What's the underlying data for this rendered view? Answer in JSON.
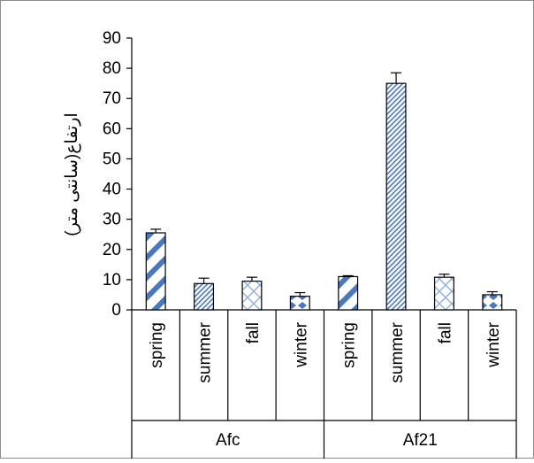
{
  "chart_data": {
    "type": "bar",
    "ylabel": "ارتفاع(سانتی متر)",
    "ylim": [
      0,
      90
    ],
    "yticks": [
      0,
      10,
      20,
      30,
      40,
      50,
      60,
      70,
      80,
      90
    ],
    "groups": [
      {
        "label": "Afc",
        "categories": [
          "spring",
          "summer",
          "fall",
          "winter"
        ],
        "values": [
          25.5,
          8.7,
          9.5,
          4.5
        ],
        "errors": [
          1.2,
          1.8,
          1.3,
          1.2
        ]
      },
      {
        "label": "Af21",
        "categories": [
          "spring",
          "summer",
          "fall",
          "winter"
        ],
        "values": [
          11,
          75,
          10.8,
          5
        ],
        "errors": [
          0.3,
          3.5,
          1,
          1
        ]
      }
    ],
    "grid": false,
    "colors": {
      "bar_fill": "#4a78c0",
      "bar_stroke": "#000000",
      "axis": "#000000",
      "frame": "#8c8c8c"
    },
    "patterns": [
      "wide-downward-diagonal",
      "narrow-downward-diagonal",
      "diagonal-cross",
      "solid-diamond"
    ]
  }
}
